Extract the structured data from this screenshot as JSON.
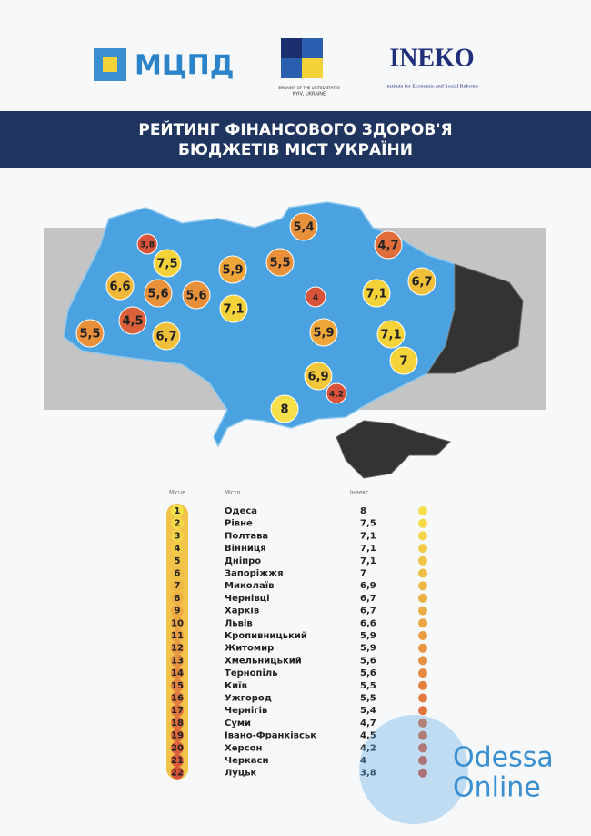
{
  "header": {
    "logo_left": "МЦПД",
    "embassy": "EMBASSY OF THE UNITED STATES",
    "embassy_city": "KYIV, UKRAINE",
    "logo_right": "INEKO",
    "logo_right_sub": "Institute for Economic and Social Reforms"
  },
  "title": [
    "РЕЙТИНГ ФІНАНСОВОГО ЗДОРОВ'Я",
    "БЮДЖЕТІВ МІСТ УКРАЇНИ"
  ],
  "map": {
    "markers": [
      {
        "label": "3,8",
        "color": "#d9533a"
      },
      {
        "label": "7,5",
        "color": "#f3d23a"
      },
      {
        "label": "6,6",
        "color": "#f0b83a"
      },
      {
        "label": "5,6",
        "color": "#e8903a"
      },
      {
        "label": "5,6",
        "color": "#e8903a"
      },
      {
        "label": "5,9",
        "color": "#eea53a"
      },
      {
        "label": "7,1",
        "color": "#f3d23a"
      },
      {
        "label": "5,4",
        "color": "#e8903a"
      },
      {
        "label": "5,5",
        "color": "#e8903a"
      },
      {
        "label": "4",
        "color": "#d9533a"
      },
      {
        "label": "4,7",
        "color": "#df6e3a"
      },
      {
        "label": "6,7",
        "color": "#f0c03a"
      },
      {
        "label": "7,1",
        "color": "#f3d23a"
      },
      {
        "label": "7,1",
        "color": "#f3d23a"
      },
      {
        "label": "5,9",
        "color": "#eea53a"
      },
      {
        "label": "4,5",
        "color": "#dc603a"
      },
      {
        "label": "6,7",
        "color": "#f0c03a"
      },
      {
        "label": "5,5",
        "color": "#e8903a"
      },
      {
        "label": "7",
        "color": "#f3d23a"
      },
      {
        "label": "6,9",
        "color": "#f2c83a"
      },
      {
        "label": "4,2",
        "color": "#d9533a"
      },
      {
        "label": "8",
        "color": "#f6e04a"
      }
    ]
  },
  "table": {
    "headers": [
      "Місце",
      "Місто",
      "Індекс"
    ],
    "rows": [
      [
        1,
        "Одеса",
        "8"
      ],
      [
        2,
        "Рівне",
        "7,5"
      ],
      [
        3,
        "Полтава",
        "7,1"
      ],
      [
        4,
        "Вінниця",
        "7,1"
      ],
      [
        5,
        "Дніпро",
        "7,1"
      ],
      [
        6,
        "Запоріжжя",
        "7"
      ],
      [
        7,
        "Миколаїв",
        "6,9"
      ],
      [
        8,
        "Чернівці",
        "6,7"
      ],
      [
        9,
        "Харків",
        "6,7"
      ],
      [
        10,
        "Львів",
        "6,6"
      ],
      [
        11,
        "Кропивницький",
        "5,9"
      ],
      [
        12,
        "Житомир",
        "5,9"
      ],
      [
        13,
        "Хмельницький",
        "5,6"
      ],
      [
        14,
        "Тернопіль",
        "5,6"
      ],
      [
        15,
        "Київ",
        "5,5"
      ],
      [
        16,
        "Ужгород",
        "5,5"
      ],
      [
        17,
        "Чернігів",
        "5,4"
      ],
      [
        18,
        "Суми",
        "4,7"
      ],
      [
        19,
        "Івано-Франківськ",
        "4,5"
      ],
      [
        20,
        "Херсон",
        "4,2"
      ],
      [
        21,
        "Черкаси",
        "4"
      ],
      [
        22,
        "Луцьк",
        "3,8"
      ]
    ]
  },
  "watermark": [
    "Odessa",
    "Online"
  ]
}
